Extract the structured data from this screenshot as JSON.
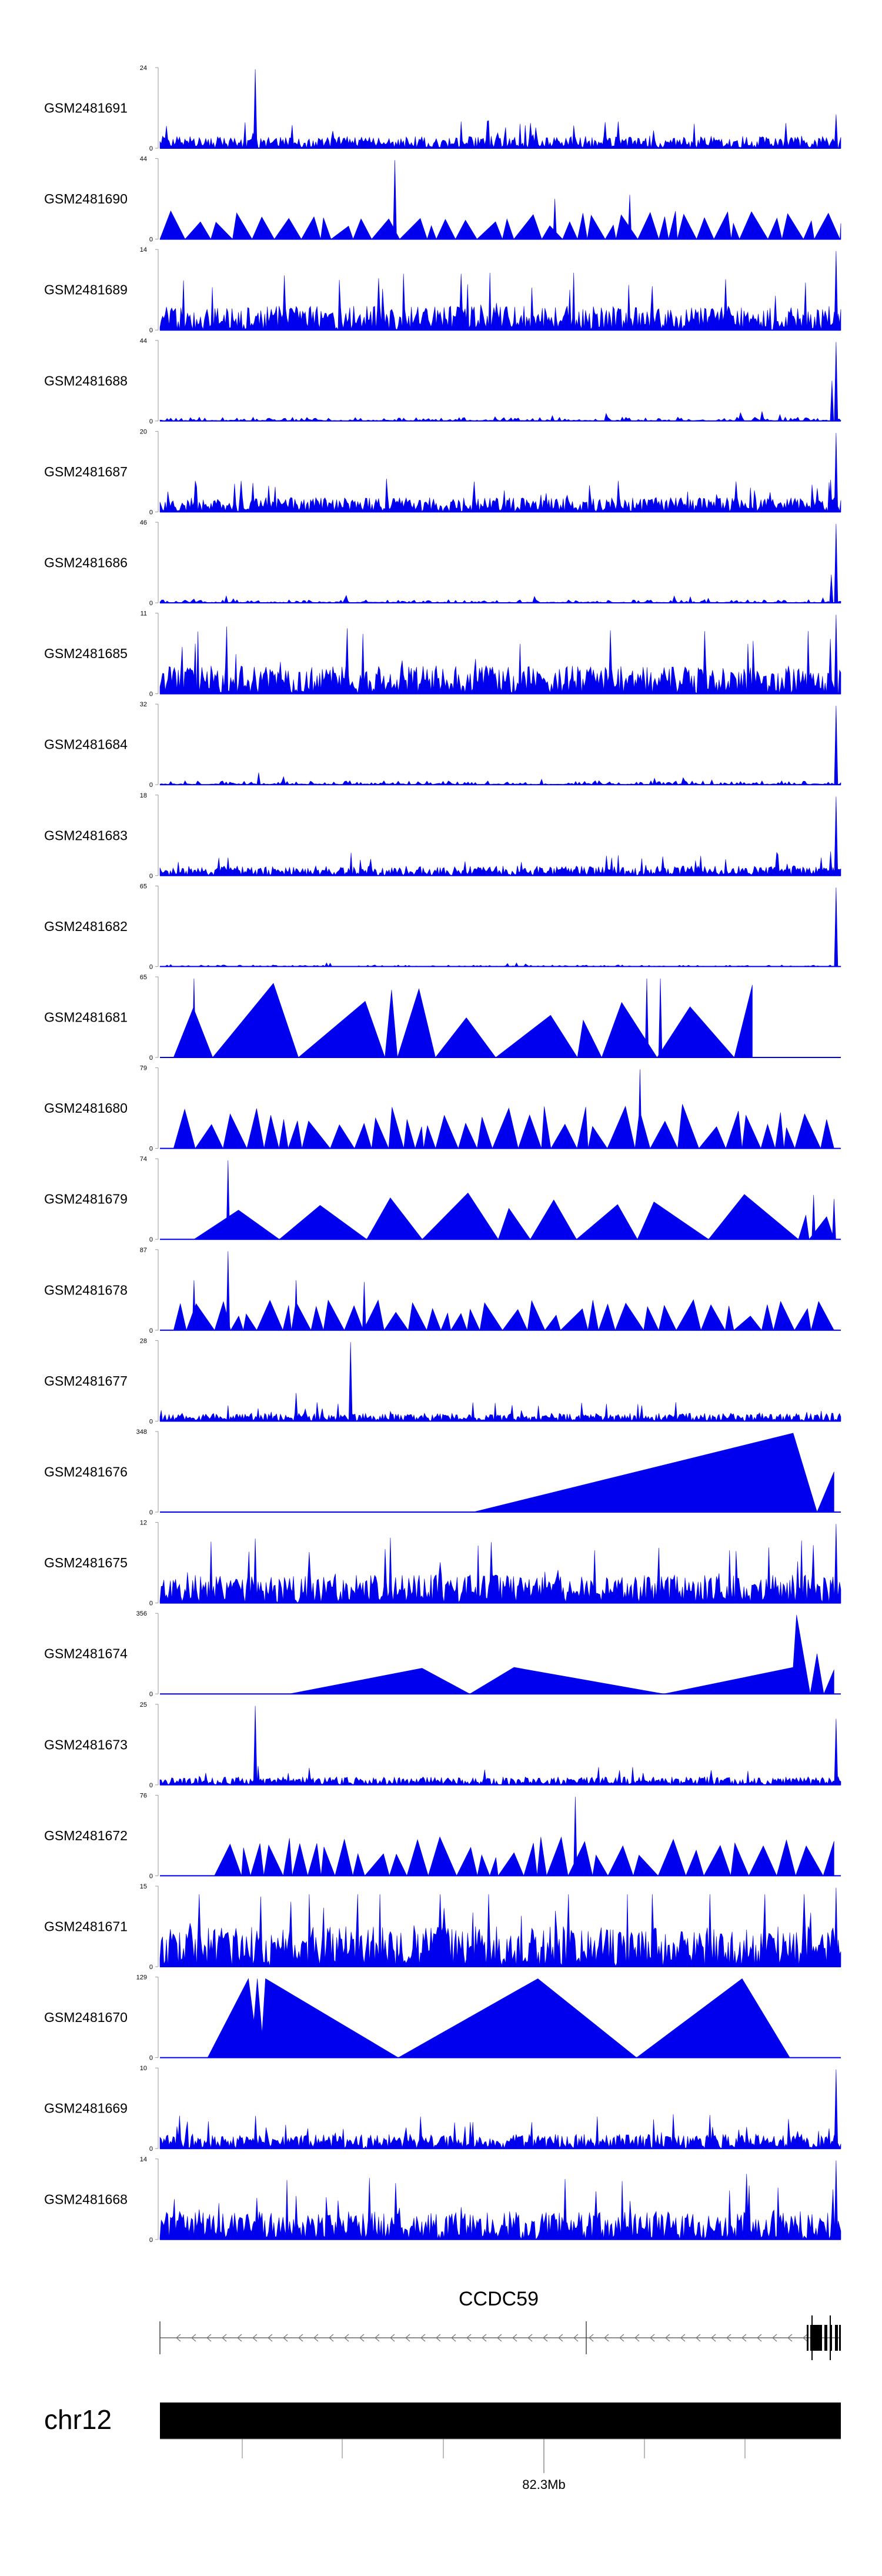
{
  "chart_data": {
    "type": "area",
    "title": "",
    "xlabel": "",
    "ylabel": "",
    "fill_color": "#0000ee",
    "tracks": [
      {
        "name": "GSM2481691",
        "ymax": "24",
        "profile": "dense",
        "intensity": 0.15,
        "seed": 11,
        "peaks": [
          [
            0.14,
            0.98
          ],
          [
            0.993,
            0.42
          ]
        ]
      },
      {
        "name": "GSM2481690",
        "ymax": "44",
        "profile": "tri",
        "intensity": 0.32,
        "seed": 12,
        "peaks": [
          [
            0.345,
            0.98
          ],
          [
            0.58,
            0.5
          ],
          [
            0.69,
            0.55
          ]
        ]
      },
      {
        "name": "GSM2481689",
        "ymax": "14",
        "profile": "dense",
        "intensity": 0.3,
        "seed": 13,
        "peaks": [
          [
            0.993,
            0.98
          ]
        ]
      },
      {
        "name": "GSM2481688",
        "ymax": "44",
        "profile": "low",
        "intensity": 0.05,
        "seed": 14,
        "peaks": [
          [
            0.993,
            0.98
          ],
          [
            0.987,
            0.5
          ]
        ]
      },
      {
        "name": "GSM2481687",
        "ymax": "20",
        "profile": "dense",
        "intensity": 0.18,
        "seed": 15,
        "peaks": [
          [
            0.993,
            0.98
          ],
          [
            0.985,
            0.4
          ]
        ]
      },
      {
        "name": "GSM2481686",
        "ymax": "46",
        "profile": "low",
        "intensity": 0.04,
        "seed": 16,
        "peaks": [
          [
            0.993,
            0.98
          ],
          [
            0.986,
            0.35
          ]
        ]
      },
      {
        "name": "GSM2481685",
        "ymax": "11",
        "profile": "dense",
        "intensity": 0.35,
        "seed": 17,
        "peaks": [
          [
            0.993,
            0.98
          ]
        ]
      },
      {
        "name": "GSM2481684",
        "ymax": "32",
        "profile": "low",
        "intensity": 0.05,
        "seed": 18,
        "peaks": [
          [
            0.993,
            0.98
          ],
          [
            0.145,
            0.15
          ]
        ]
      },
      {
        "name": "GSM2481683",
        "ymax": "18",
        "profile": "dense",
        "intensity": 0.12,
        "seed": 19,
        "peaks": [
          [
            0.993,
            0.98
          ],
          [
            0.985,
            0.3
          ]
        ]
      },
      {
        "name": "GSM2481682",
        "ymax": "65",
        "profile": "low",
        "intensity": 0.02,
        "seed": 20,
        "peaks": [
          [
            0.993,
            0.98
          ]
        ]
      },
      {
        "name": "GSM2481681",
        "ymax": "65",
        "profile": "tri",
        "intensity": 0.9,
        "seed": 21,
        "coverage": [
          0.02,
          0.87
        ],
        "peaks": [
          [
            0.05,
            0.98
          ],
          [
            0.715,
            0.98
          ],
          [
            0.735,
            0.98
          ]
        ]
      },
      {
        "name": "GSM2481680",
        "ymax": "79",
        "profile": "tri",
        "intensity": 0.5,
        "seed": 22,
        "coverage": [
          0.02,
          0.99
        ],
        "peaks": [
          [
            0.705,
            0.98
          ]
        ]
      },
      {
        "name": "GSM2481679",
        "ymax": "74",
        "profile": "tri",
        "intensity": 0.55,
        "seed": 23,
        "coverage": [
          0.05,
          0.99
        ],
        "peaks": [
          [
            0.1,
            0.98
          ],
          [
            0.96,
            0.55
          ],
          [
            0.99,
            0.5
          ]
        ]
      },
      {
        "name": "GSM2481678",
        "ymax": "87",
        "profile": "tri",
        "intensity": 0.35,
        "seed": 24,
        "coverage": [
          0.02,
          0.99
        ],
        "peaks": [
          [
            0.1,
            0.98
          ],
          [
            0.05,
            0.62
          ],
          [
            0.2,
            0.62
          ],
          [
            0.3,
            0.6
          ]
        ]
      },
      {
        "name": "GSM2481677",
        "ymax": "28",
        "profile": "dense",
        "intensity": 0.1,
        "seed": 25,
        "peaks": [
          [
            0.28,
            0.98
          ],
          [
            0.2,
            0.35
          ]
        ]
      },
      {
        "name": "GSM2481676",
        "ymax": "348",
        "profile": "tri",
        "intensity": 0.0,
        "seed": 26,
        "peaks": [],
        "custom": [
          [
            0.46,
            0.0
          ],
          [
            0.93,
            0.98
          ],
          [
            0.965,
            0.0
          ],
          [
            0.99,
            0.5
          ]
        ]
      },
      {
        "name": "GSM2481675",
        "ymax": "12",
        "profile": "dense",
        "intensity": 0.35,
        "seed": 27,
        "peaks": [
          [
            0.993,
            0.98
          ],
          [
            0.14,
            0.8
          ]
        ]
      },
      {
        "name": "GSM2481674",
        "ymax": "356",
        "profile": "tri",
        "intensity": 0.0,
        "seed": 28,
        "peaks": [],
        "custom": [
          [
            0.19,
            0.0
          ],
          [
            0.385,
            0.32
          ],
          [
            0.455,
            0.0
          ],
          [
            0.52,
            0.33
          ],
          [
            0.74,
            0.0
          ],
          [
            0.93,
            0.33
          ],
          [
            0.935,
            0.98
          ],
          [
            0.955,
            0.0
          ],
          [
            0.965,
            0.5
          ],
          [
            0.975,
            0.0
          ],
          [
            0.99,
            0.3
          ]
        ]
      },
      {
        "name": "GSM2481673",
        "ymax": "25",
        "profile": "dense",
        "intensity": 0.1,
        "seed": 29,
        "peaks": [
          [
            0.14,
            0.98
          ],
          [
            0.993,
            0.82
          ]
        ]
      },
      {
        "name": "GSM2481672",
        "ymax": "76",
        "profile": "tri",
        "intensity": 0.45,
        "seed": 30,
        "coverage": [
          0.08,
          0.99
        ],
        "peaks": [
          [
            0.61,
            0.98
          ]
        ]
      },
      {
        "name": "GSM2481671",
        "ymax": "15",
        "profile": "dense",
        "intensity": 0.5,
        "seed": 31,
        "peaks": [
          [
            0.993,
            0.98
          ]
        ]
      },
      {
        "name": "GSM2481670",
        "ymax": "129",
        "profile": "tri",
        "intensity": 0.0,
        "seed": 32,
        "peaks": [],
        "custom": [
          [
            0.07,
            0.0
          ],
          [
            0.13,
            0.98
          ],
          [
            0.138,
            0.45
          ],
          [
            0.143,
            0.98
          ],
          [
            0.15,
            0.3
          ],
          [
            0.155,
            0.98
          ],
          [
            0.35,
            0.0
          ],
          [
            0.555,
            0.98
          ],
          [
            0.7,
            0.0
          ],
          [
            0.855,
            0.98
          ],
          [
            0.925,
            0.0
          ]
        ]
      },
      {
        "name": "GSM2481669",
        "ymax": "10",
        "profile": "dense",
        "intensity": 0.18,
        "seed": 33,
        "peaks": [
          [
            0.993,
            0.98
          ]
        ]
      },
      {
        "name": "GSM2481668",
        "ymax": "14",
        "profile": "dense",
        "intensity": 0.35,
        "seed": 34,
        "peaks": [
          [
            0.993,
            0.98
          ],
          [
            0.595,
            0.75
          ]
        ]
      }
    ],
    "gene": {
      "name": "CCDC59",
      "strand": "-"
    },
    "chromosome": {
      "name": "chr12",
      "position_label": "82.3Mb"
    }
  }
}
